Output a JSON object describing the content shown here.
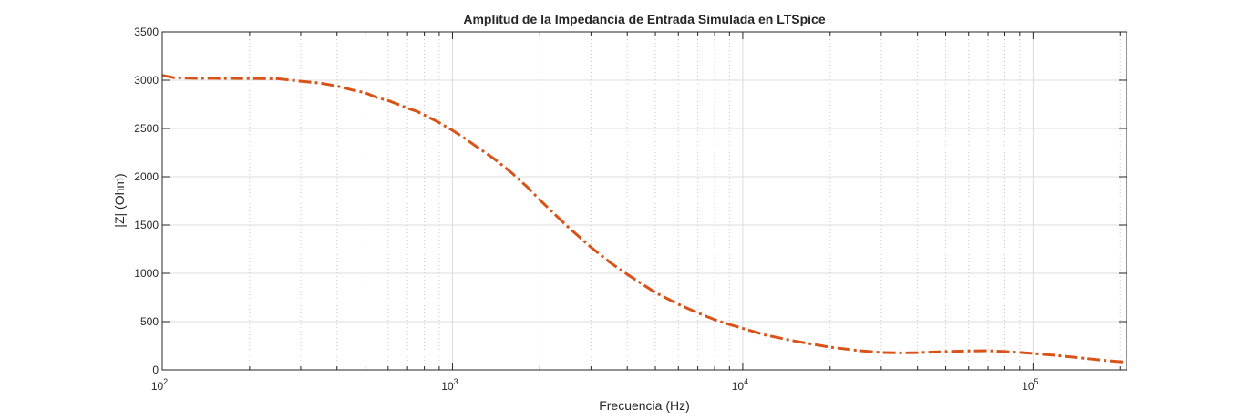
{
  "chart_data": {
    "type": "line",
    "title": "Amplitud de la Impedancia de Entrada Simulada en LTSpice",
    "xlabel": "Frecuencia (Hz)",
    "ylabel": "|Z| (Ohm)",
    "xscale": "log",
    "xlim": [
      100,
      210000
    ],
    "ylim": [
      0,
      3500
    ],
    "grid": true,
    "x_ticks": [
      {
        "base": "10",
        "exp": "2",
        "value": 100
      },
      {
        "base": "10",
        "exp": "3",
        "value": 1000
      },
      {
        "base": "10",
        "exp": "4",
        "value": 10000
      },
      {
        "base": "10",
        "exp": "5",
        "value": 100000
      }
    ],
    "y_ticks": [
      "0",
      "500",
      "1000",
      "1500",
      "2000",
      "2500",
      "3000",
      "3500"
    ],
    "series": [
      {
        "color": "#D95319",
        "line_style": "dash-dot",
        "x": [
          100,
          110,
          130,
          150,
          200,
          250,
          300,
          350,
          400,
          450,
          500,
          550,
          600,
          650,
          700,
          750,
          800,
          900,
          1000,
          1100,
          1200,
          1400,
          1600,
          1800,
          2000,
          2200,
          2500,
          3000,
          3500,
          4000,
          4500,
          5000,
          6000,
          7000,
          8000,
          9000,
          10000,
          12000,
          15000,
          20000,
          25000,
          30000,
          35000,
          40000,
          50000,
          60000,
          70000,
          80000,
          90000,
          100000,
          120000,
          150000,
          180000,
          210000
        ],
        "y": [
          3050,
          3025,
          3020,
          3020,
          3018,
          3015,
          2990,
          2970,
          2940,
          2900,
          2870,
          2820,
          2790,
          2750,
          2710,
          2680,
          2640,
          2560,
          2480,
          2400,
          2320,
          2180,
          2040,
          1900,
          1760,
          1640,
          1480,
          1270,
          1110,
          990,
          890,
          800,
          680,
          590,
          520,
          470,
          430,
          360,
          300,
          235,
          200,
          180,
          175,
          178,
          190,
          195,
          198,
          190,
          180,
          170,
          150,
          120,
          95,
          80
        ]
      }
    ]
  }
}
